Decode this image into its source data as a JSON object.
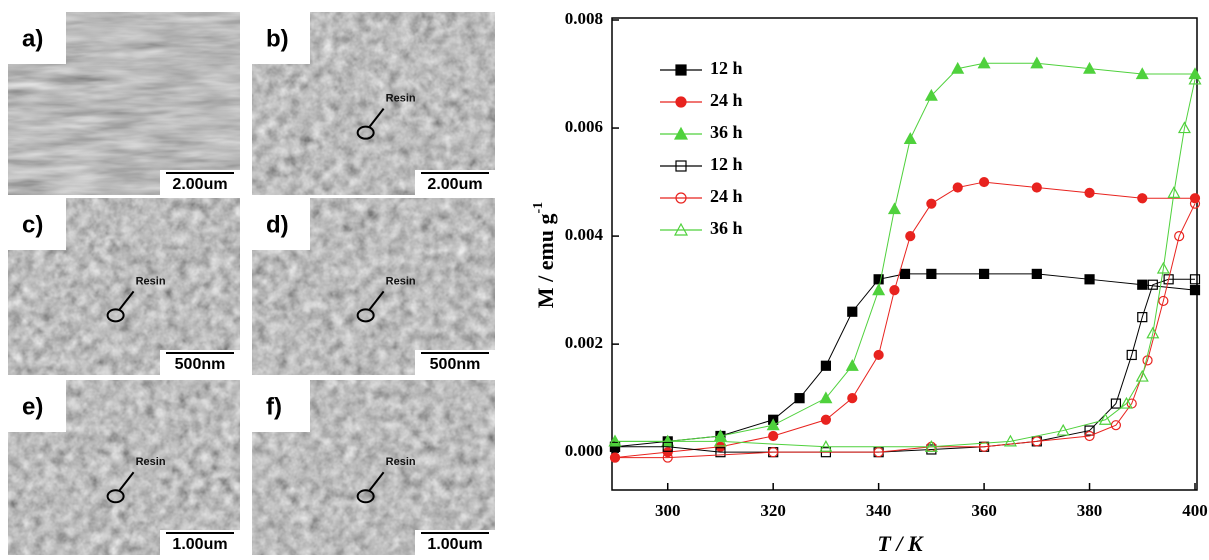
{
  "images": [
    {
      "label": "a)",
      "scale_bar": "2.00um"
    },
    {
      "label": "b)",
      "scale_bar": "2.00um",
      "annotation": "Resin"
    },
    {
      "label": "c)",
      "scale_bar": "500nm",
      "annotation": "Resin"
    },
    {
      "label": "d)",
      "scale_bar": "500nm",
      "annotation": "Resin"
    },
    {
      "label": "e)",
      "scale_bar": "1.00um",
      "annotation": "Resin"
    },
    {
      "label": "f)",
      "scale_bar": "1.00um",
      "annotation": "Resin"
    }
  ],
  "chart_data": {
    "type": "line",
    "x_label": "T / K",
    "y_label": "M / emu g",
    "y_label_superscript": "-1",
    "xlim": [
      290,
      400
    ],
    "xticks": [
      300,
      320,
      340,
      360,
      380,
      400
    ],
    "ylim": [
      -0.0007,
      0.008
    ],
    "yticks": [
      {
        "value": 0,
        "label": "0.000"
      },
      0.002,
      0.004,
      0.006,
      0.008
    ],
    "legend": "upper left",
    "series": [
      {
        "name": "12 h",
        "color": "#000000",
        "marker": "square",
        "filled": true,
        "x": [
          290,
          300,
          310,
          320,
          325,
          330,
          335,
          340,
          345,
          350,
          360,
          370,
          380,
          390,
          400
        ],
        "values": [
          0.0001,
          0.0002,
          0.0003,
          0.0006,
          0.001,
          0.0016,
          0.0026,
          0.0032,
          0.0033,
          0.0033,
          0.0033,
          0.0033,
          0.0032,
          0.0031,
          0.003
        ]
      },
      {
        "name": "24 h",
        "color": "#e8231f",
        "marker": "circle",
        "filled": true,
        "x": [
          290,
          300,
          310,
          320,
          330,
          335,
          340,
          343,
          346,
          350,
          355,
          360,
          370,
          380,
          390,
          400
        ],
        "values": [
          -0.0001,
          0,
          0.0001,
          0.0003,
          0.0006,
          0.001,
          0.0018,
          0.003,
          0.004,
          0.0046,
          0.0049,
          0.005,
          0.0049,
          0.0048,
          0.0047,
          0.0047
        ]
      },
      {
        "name": "36 h",
        "color": "#4fd13c",
        "marker": "triangle",
        "filled": true,
        "x": [
          290,
          300,
          310,
          320,
          330,
          335,
          340,
          343,
          346,
          350,
          355,
          360,
          370,
          380,
          390,
          400
        ],
        "values": [
          0.0002,
          0.0002,
          0.0003,
          0.0005,
          0.001,
          0.0016,
          0.003,
          0.0045,
          0.0058,
          0.0066,
          0.0071,
          0.0072,
          0.0072,
          0.0071,
          0.007,
          0.007
        ]
      },
      {
        "name": "12 h",
        "color": "#000000",
        "marker": "square",
        "filled": false,
        "x": [
          400,
          395,
          392,
          390,
          388,
          385,
          380,
          370,
          360,
          350,
          340,
          330,
          320,
          310,
          300,
          290
        ],
        "values": [
          0.0032,
          0.0032,
          0.0031,
          0.0025,
          0.0018,
          0.0009,
          0.0004,
          0.0002,
          0.0001,
          5e-05,
          0,
          0,
          0,
          0,
          0.0001,
          0.0001
        ]
      },
      {
        "name": "24 h",
        "color": "#e8231f",
        "marker": "circle",
        "filled": false,
        "x": [
          400,
          397,
          394,
          391,
          388,
          385,
          380,
          370,
          360,
          350,
          340,
          320,
          300,
          290
        ],
        "values": [
          0.0046,
          0.004,
          0.0028,
          0.0017,
          0.0009,
          0.0005,
          0.0003,
          0.0002,
          0.0001,
          0.0001,
          0,
          0,
          -0.0001,
          -0.0001
        ]
      },
      {
        "name": "36 h",
        "color": "#4fd13c",
        "marker": "triangle",
        "filled": false,
        "x": [
          400,
          398,
          396,
          394,
          392,
          390,
          387,
          383,
          375,
          365,
          350,
          330,
          310,
          290
        ],
        "values": [
          0.0069,
          0.006,
          0.0048,
          0.0034,
          0.0022,
          0.0014,
          0.0009,
          0.0006,
          0.0004,
          0.0002,
          0.0001,
          0.0001,
          0.0002,
          0.0002
        ]
      }
    ]
  }
}
